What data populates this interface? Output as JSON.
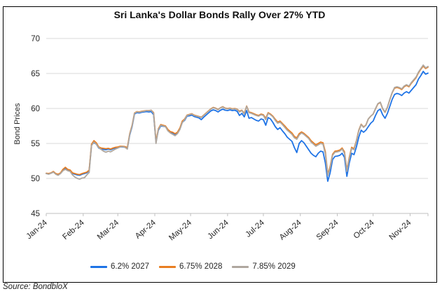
{
  "source_note": "Source: BondbloX",
  "colors": {
    "grid": "#D9D9D9",
    "axis": "#BFBFBF",
    "text": "#262626",
    "title": "#111111",
    "background": "#FFFFFF",
    "border": "#000000"
  },
  "chart_data": {
    "type": "line",
    "title": "Sri Lanka's Dollar Bonds Rally Over 27% YTD",
    "xlabel": "",
    "ylabel": "Bond Prices",
    "ylim": [
      45,
      70
    ],
    "y_ticks": [
      45,
      50,
      55,
      60,
      65,
      70
    ],
    "grid": "horizontal",
    "legend_position": "bottom",
    "n_points": 161,
    "x_unit": "2-day intervals, Jan-2024 to mid-Nov-2024",
    "x_ticks": [
      {
        "label": "Jan-24",
        "pos": 0
      },
      {
        "label": "Feb-24",
        "pos": 15.5
      },
      {
        "label": "Mar-24",
        "pos": 30
      },
      {
        "label": "Apr-24",
        "pos": 45.5
      },
      {
        "label": "May-24",
        "pos": 60.5
      },
      {
        "label": "Jun-24",
        "pos": 76
      },
      {
        "label": "Jul-24",
        "pos": 91
      },
      {
        "label": "Aug-24",
        "pos": 106.5
      },
      {
        "label": "Sep-24",
        "pos": 122
      },
      {
        "label": "Oct-24",
        "pos": 137
      },
      {
        "label": "Nov-24",
        "pos": 152.5
      }
    ],
    "series": [
      {
        "name": "6.2% 2027",
        "color": "#1E73E6",
        "values": [
          50.7,
          50.65,
          50.75,
          50.95,
          50.65,
          50.55,
          50.75,
          51.2,
          51.45,
          51.2,
          51.1,
          50.7,
          50.6,
          50.5,
          50.45,
          50.6,
          50.7,
          50.8,
          51.1,
          54.8,
          55.1,
          54.9,
          54.35,
          54.2,
          54.15,
          54.1,
          54.2,
          54.1,
          54.25,
          54.35,
          54.4,
          54.5,
          54.5,
          54.45,
          54.3,
          56.2,
          57.4,
          59.2,
          59.4,
          59.35,
          59.45,
          59.5,
          59.55,
          59.5,
          59.55,
          59.1,
          55.2,
          56.9,
          57.5,
          57.45,
          57.4,
          56.9,
          56.6,
          56.5,
          56.3,
          56.5,
          57.05,
          58.0,
          58.3,
          58.9,
          58.95,
          59.05,
          58.85,
          58.75,
          58.65,
          58.4,
          58.75,
          59.05,
          59.35,
          59.65,
          59.8,
          59.7,
          59.5,
          59.75,
          59.9,
          59.75,
          59.7,
          59.8,
          59.7,
          59.75,
          59.6,
          59.0,
          59.3,
          58.8,
          59.7,
          58.6,
          58.7,
          58.5,
          58.3,
          58.2,
          58.5,
          58.4,
          57.6,
          58.7,
          58.5,
          58.0,
          57.4,
          57.0,
          57.25,
          56.8,
          56.4,
          55.9,
          55.6,
          55.3,
          54.4,
          53.7,
          55.0,
          55.4,
          55.1,
          54.6,
          54.1,
          53.6,
          53.3,
          53.1,
          53.6,
          53.9,
          53.8,
          52.2,
          49.6,
          50.8,
          52.7,
          53.15,
          53.2,
          53.3,
          53.6,
          53.0,
          50.3,
          52.2,
          53.6,
          53.4,
          54.5,
          55.9,
          56.9,
          56.6,
          56.9,
          57.4,
          57.9,
          58.2,
          59.0,
          59.7,
          59.9,
          59.1,
          58.6,
          59.3,
          60.3,
          61.3,
          62.0,
          62.15,
          62.05,
          61.85,
          62.2,
          62.4,
          62.2,
          62.6,
          63.0,
          63.4,
          64.2,
          64.7,
          65.3,
          64.9,
          65.05
        ]
      },
      {
        "name": "6.75% 2028",
        "color": "#E87E22",
        "values": [
          50.75,
          50.7,
          50.8,
          51.0,
          50.7,
          50.6,
          50.8,
          51.3,
          51.6,
          51.3,
          51.2,
          50.8,
          50.7,
          50.6,
          50.55,
          50.7,
          50.8,
          50.9,
          51.2,
          54.9,
          55.4,
          55.1,
          54.5,
          54.35,
          54.3,
          54.25,
          54.3,
          54.2,
          54.35,
          54.45,
          54.5,
          54.6,
          54.6,
          54.55,
          54.4,
          56.4,
          57.6,
          59.35,
          59.55,
          59.5,
          59.6,
          59.65,
          59.7,
          59.7,
          59.75,
          59.4,
          55.3,
          57.1,
          57.7,
          57.6,
          57.5,
          57.0,
          56.7,
          56.6,
          56.4,
          56.6,
          57.2,
          58.2,
          58.5,
          59.05,
          59.15,
          59.25,
          59.05,
          58.95,
          58.85,
          58.75,
          59.05,
          59.35,
          59.65,
          59.95,
          60.15,
          60.05,
          59.85,
          60.1,
          60.25,
          60.05,
          60.0,
          60.05,
          59.95,
          60.0,
          59.9,
          59.6,
          59.75,
          59.3,
          60.35,
          59.5,
          59.4,
          59.25,
          59.1,
          59.0,
          59.2,
          59.1,
          58.6,
          59.4,
          59.2,
          58.9,
          58.45,
          58.05,
          58.2,
          57.85,
          57.5,
          57.1,
          56.8,
          56.5,
          56.0,
          55.8,
          56.4,
          56.65,
          56.45,
          56.15,
          55.85,
          55.4,
          55.1,
          54.8,
          55.0,
          55.2,
          55.1,
          53.8,
          50.6,
          51.7,
          53.45,
          53.9,
          53.95,
          54.05,
          54.35,
          53.8,
          51.2,
          53.0,
          54.45,
          54.25,
          55.4,
          56.9,
          57.75,
          57.35,
          57.65,
          58.5,
          58.9,
          59.2,
          59.95,
          60.65,
          60.85,
          59.95,
          59.45,
          60.15,
          61.25,
          62.25,
          62.9,
          63.0,
          62.9,
          62.7,
          63.1,
          63.3,
          63.1,
          63.6,
          64.0,
          64.4,
          65.1,
          65.6,
          66.05,
          65.7,
          65.9
        ]
      },
      {
        "name": "7.85% 2029",
        "color": "#AFA79F",
        "values": [
          50.7,
          50.6,
          50.75,
          50.9,
          50.6,
          50.45,
          50.7,
          51.1,
          51.3,
          51.1,
          51.0,
          50.5,
          50.2,
          50.0,
          49.9,
          50.05,
          50.1,
          50.5,
          50.85,
          54.7,
          55.2,
          54.9,
          54.4,
          54.15,
          53.9,
          53.75,
          53.9,
          53.8,
          54.0,
          54.2,
          54.35,
          54.5,
          54.55,
          54.45,
          54.2,
          56.3,
          57.5,
          59.3,
          59.5,
          59.45,
          59.55,
          59.6,
          59.7,
          59.65,
          59.75,
          59.3,
          55.0,
          57.0,
          57.6,
          57.5,
          57.4,
          56.8,
          56.5,
          56.3,
          56.1,
          56.4,
          57.0,
          58.0,
          58.4,
          59.0,
          59.1,
          59.2,
          59.0,
          58.9,
          58.8,
          58.7,
          59.0,
          59.3,
          59.6,
          59.9,
          60.1,
          60.0,
          59.8,
          60.1,
          60.2,
          60.0,
          59.95,
          60.0,
          59.9,
          59.95,
          59.85,
          59.5,
          59.7,
          59.2,
          60.3,
          59.4,
          59.3,
          59.15,
          59.0,
          58.9,
          59.1,
          59.0,
          58.4,
          59.3,
          59.1,
          58.8,
          58.3,
          57.9,
          58.05,
          57.7,
          57.3,
          56.9,
          56.6,
          56.3,
          55.8,
          55.6,
          56.2,
          56.5,
          56.3,
          56.0,
          55.7,
          55.2,
          54.9,
          54.6,
          54.8,
          55.0,
          54.9,
          53.5,
          50.4,
          51.5,
          53.3,
          53.75,
          53.8,
          53.9,
          54.2,
          53.6,
          51.0,
          52.8,
          54.3,
          54.1,
          55.3,
          56.8,
          57.7,
          57.3,
          57.6,
          58.5,
          58.9,
          59.2,
          60.0,
          60.7,
          60.9,
          60.0,
          59.5,
          60.2,
          61.3,
          62.3,
          63.0,
          63.1,
          63.0,
          62.8,
          63.2,
          63.4,
          63.2,
          63.7,
          64.1,
          64.5,
          65.2,
          65.7,
          66.2,
          65.8,
          66.0
        ]
      }
    ]
  }
}
